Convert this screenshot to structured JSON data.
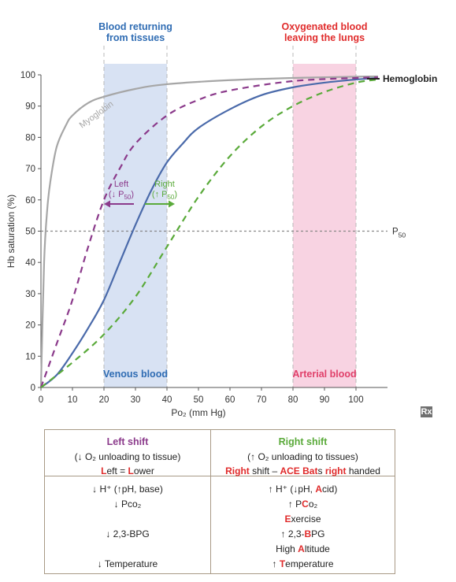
{
  "chart_data": {
    "type": "line",
    "xlabel": "Po₂ (mm Hg)",
    "ylabel": "Hb saturation (%)",
    "xlim": [
      0,
      110
    ],
    "ylim": [
      0,
      100
    ],
    "x_ticks": [
      0,
      10,
      20,
      30,
      40,
      50,
      60,
      70,
      80,
      90,
      100
    ],
    "y_ticks": [
      0,
      10,
      20,
      30,
      40,
      50,
      60,
      70,
      80,
      90,
      100
    ],
    "series": [
      {
        "name": "Myoglobin",
        "color": "#a6a6a6",
        "style": "solid",
        "x": [
          0,
          1,
          2,
          3,
          5,
          8,
          10,
          15,
          20,
          30,
          40,
          60,
          80,
          100,
          107
        ],
        "y": [
          0,
          40,
          57,
          66,
          77,
          84,
          87,
          91,
          93,
          95.5,
          97,
          98.3,
          99,
          99.4,
          99.5
        ]
      },
      {
        "name": "Hemoglobin",
        "color": "#4a6aaa",
        "style": "solid",
        "x": [
          0,
          5,
          10,
          15,
          20,
          25,
          30,
          35,
          40,
          45,
          50,
          60,
          70,
          80,
          90,
          100,
          107
        ],
        "y": [
          0,
          4,
          11,
          19,
          28,
          40,
          52,
          63,
          72,
          78,
          83,
          89,
          93.5,
          96,
          97.5,
          98.5,
          99
        ]
      },
      {
        "name": "",
        "color": "#8b3a8b",
        "style": "dashed",
        "x": [
          0,
          5,
          10,
          15,
          20,
          25,
          30,
          40,
          50,
          60,
          80,
          100,
          107
        ],
        "y": [
          0,
          14,
          28,
          45,
          60,
          70,
          78,
          87,
          92,
          95,
          98,
          99,
          99.2
        ]
      },
      {
        "name": "",
        "color": "#5aaa3a",
        "style": "dashed",
        "x": [
          0,
          10,
          20,
          30,
          40,
          50,
          60,
          70,
          80,
          90,
          100,
          107
        ],
        "y": [
          0,
          8,
          17,
          29,
          45,
          61,
          74,
          83.5,
          90,
          94.5,
          97.5,
          98.5
        ]
      }
    ],
    "regions": [
      {
        "from": 20,
        "to": 40,
        "color": "#d8e2f3",
        "top_label": [
          "Blood returning",
          "from tissues"
        ],
        "top_color": "#2f6cb3",
        "bottom_label": "Venous blood",
        "bottom_color": "#2f6cb3"
      },
      {
        "from": 80,
        "to": 100,
        "color": "#f8d3e2",
        "top_label": [
          "Oxygenated blood",
          "leaving the lungs"
        ],
        "top_color": "#e02b2b",
        "bottom_label": "Arterial blood",
        "bottom_color": "#e0406a"
      }
    ],
    "p50_line": {
      "y": 50,
      "label": "P",
      "sub": "50"
    },
    "annotations": {
      "left": {
        "text1": "Left",
        "text2": "(↓ P",
        "sub": "50",
        "close": ")",
        "color": "#8b3a8b"
      },
      "right": {
        "text1": "Right",
        "text2": "(↑ P",
        "sub": "50",
        "close": ")",
        "color": "#5aaa3a"
      },
      "myoglobin_label": "Myoglobin",
      "hemoglobin_label": "Hemoglobin"
    }
  },
  "table": {
    "left": {
      "title": "Left shift",
      "sub1": "(↓ O₂ unloading to tissue)",
      "sub2_a": "L",
      "sub2_b": "eft = ",
      "sub2_c": "L",
      "sub2_d": "ower",
      "rows": [
        "↓ H⁺ (↑pH, base)",
        "↓ Pco₂",
        "↓ 2,3-BPG",
        "↓ Temperature"
      ]
    },
    "right": {
      "title": "Right shift",
      "sub1": "(↑ O₂ unloading to tissues)",
      "sub2_a": "Right",
      "sub2_b": " shift – ",
      "sub2_c": "ACE Bat",
      "sub2_d": "s ",
      "sub2_e": "right",
      "sub2_f": " handed",
      "r1_a": "↑ H⁺ (↓pH, ",
      "r1_b": "A",
      "r1_c": "cid)",
      "r2_a": "↑ P",
      "r2_b": "C",
      "r2_c": "o₂",
      "r3_a": "E",
      "r3_b": "xercise",
      "r4_a": "↑ 2,3-",
      "r4_b": "B",
      "r4_c": "PG",
      "r5_a": "High ",
      "r5_b": "A",
      "r5_c": "ltitude",
      "r6_a": "↑ ",
      "r6_b": "T",
      "r6_c": "emperature"
    }
  },
  "badge": "Rx"
}
